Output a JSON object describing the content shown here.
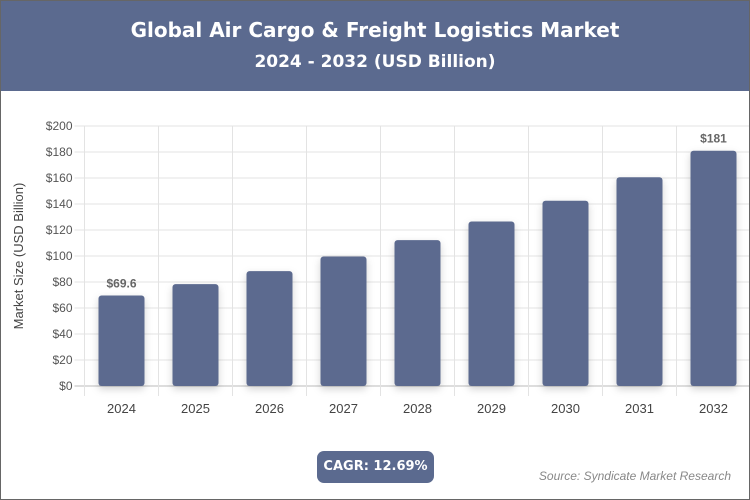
{
  "header": {
    "title": "Global Air Cargo & Freight Logistics Market",
    "subtitle": "2024 - 2032 (USD Billion)"
  },
  "chart_data": {
    "type": "bar",
    "categories": [
      "2024",
      "2025",
      "2026",
      "2027",
      "2028",
      "2029",
      "2030",
      "2031",
      "2032"
    ],
    "values": [
      69.6,
      78.4,
      88.4,
      99.6,
      112.2,
      126.5,
      142.5,
      160.6,
      181
    ],
    "data_labels": {
      "2024": "$69.6",
      "2032": "$181"
    },
    "ylabel": "Market Size (USD Billion)",
    "ylim": [
      0,
      200
    ],
    "yticks": [
      0,
      20,
      40,
      60,
      80,
      100,
      120,
      140,
      160,
      180,
      200
    ],
    "ytick_prefix": "$",
    "grid": true,
    "bar_color": "#5b6a8f"
  },
  "footer": {
    "cagr": "CAGR: 12.69%",
    "source": "Source: Syndicate Market Research"
  }
}
